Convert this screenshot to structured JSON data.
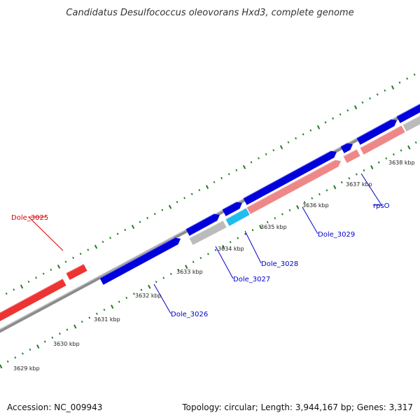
{
  "title": "Candidatus Desulfococcus oleovorans Hxd3, complete genome",
  "footer": {
    "accession": "Accession: NC_009943",
    "summary": "Topology: circular; Length: 3,944,167 bp; Genes: 3,317"
  },
  "colors": {
    "backbone": "#8c8c8c",
    "tick": "#1e7d1e",
    "forward_gene": "#0000dd",
    "highlight_gene": "#22bbee",
    "reverse_gene": "#ee3333",
    "pink_gene": "#ee8888",
    "grey_gene": "#bbbbbb",
    "label_blue": "#0000cc",
    "label_red": "#dd0000"
  },
  "ticks": [
    {
      "label": "3629 kbp"
    },
    {
      "label": "3630 kbp"
    },
    {
      "label": "3631 kbp"
    },
    {
      "label": "3632 kbp"
    },
    {
      "label": "3633 kbp"
    },
    {
      "label": "3634 kbp"
    },
    {
      "label": "3635 kbp"
    },
    {
      "label": "3636 kbp"
    },
    {
      "label": "3637 kbp"
    },
    {
      "label": "3638 kbp"
    }
  ],
  "genes": [
    {
      "id": "Dole_3025",
      "strand": "reverse",
      "color": "#ee3333"
    },
    {
      "id": "Dole_3026",
      "strand": "forward",
      "color": "#0000dd"
    },
    {
      "id": "Dole_3027",
      "strand": "forward",
      "color": "#bbbbbb"
    },
    {
      "id": "Dole_3028",
      "strand": "forward",
      "color": "#22bbee"
    },
    {
      "id": "Dole_3029",
      "strand": "forward",
      "color": "#ee8888"
    },
    {
      "id": "rpsO",
      "strand": "forward",
      "color": "#0000dd"
    }
  ],
  "gene_labels": [
    {
      "text": "Dole_3025",
      "color": "#dd0000"
    },
    {
      "text": "Dole_3026",
      "color": "#0000cc"
    },
    {
      "text": "Dole_3027",
      "color": "#0000cc"
    },
    {
      "text": "Dole_3028",
      "color": "#0000cc"
    },
    {
      "text": "Dole_3029",
      "color": "#0000cc"
    },
    {
      "text": "rpsO",
      "color": "#0000cc"
    }
  ]
}
